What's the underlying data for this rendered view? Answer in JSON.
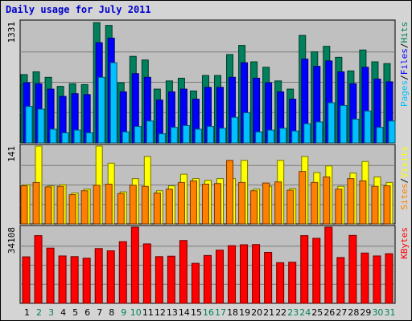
{
  "title": "Daily usage for July 2011",
  "colors": {
    "frame_bg": "#d4d4d4",
    "plot_bg": "#c0c0c0",
    "hits": "#00805c",
    "files": "#0000ff",
    "pages": "#00c0ff",
    "visits": "#ffff00",
    "sites": "#ff8000",
    "kbytes": "#ff0000",
    "weekday_label": "#000000",
    "weekend_label": "#00805c"
  },
  "chart_data": [
    {
      "type": "bar",
      "panel": "hits-files-pages",
      "ymax_label": "1331",
      "ylim": [
        0,
        1331
      ],
      "legend_labels": [
        "Pages",
        "/",
        "Files",
        "/",
        "Hits"
      ],
      "categories": [
        "1",
        "2",
        "3",
        "4",
        "5",
        "6",
        "7",
        "8",
        "9",
        "10",
        "11",
        "12",
        "13",
        "14",
        "15",
        "16",
        "17",
        "18",
        "19",
        "20",
        "21",
        "22",
        "23",
        "24",
        "25",
        "26",
        "27",
        "28",
        "29",
        "30",
        "31"
      ],
      "series": [
        {
          "name": "Hits",
          "values": [
            750,
            780,
            720,
            620,
            650,
            640,
            1320,
            1290,
            660,
            950,
            910,
            590,
            680,
            710,
            570,
            740,
            740,
            970,
            1070,
            890,
            830,
            680,
            590,
            1180,
            1000,
            1060,
            940,
            790,
            1020,
            890,
            870
          ]
        },
        {
          "name": "Files",
          "values": [
            660,
            650,
            590,
            510,
            540,
            530,
            1100,
            1150,
            560,
            760,
            720,
            470,
            560,
            590,
            480,
            610,
            610,
            720,
            880,
            710,
            660,
            560,
            480,
            920,
            840,
            900,
            780,
            650,
            830,
            700,
            670
          ]
        },
        {
          "name": "Pages",
          "values": [
            400,
            370,
            150,
            110,
            140,
            110,
            720,
            880,
            120,
            180,
            240,
            100,
            170,
            190,
            150,
            180,
            160,
            280,
            330,
            120,
            140,
            160,
            130,
            210,
            230,
            440,
            410,
            260,
            350,
            170,
            240
          ]
        }
      ]
    },
    {
      "type": "bar",
      "panel": "visits-sites",
      "ymax_label": "141",
      "ylim": [
        0,
        141
      ],
      "legend_labels": [
        "Sites",
        "/",
        "Visits"
      ],
      "categories": [
        "1",
        "2",
        "3",
        "4",
        "5",
        "6",
        "7",
        "8",
        "9",
        "10",
        "11",
        "12",
        "13",
        "14",
        "15",
        "16",
        "17",
        "18",
        "19",
        "20",
        "21",
        "22",
        "23",
        "24",
        "25",
        "26",
        "27",
        "28",
        "29",
        "30",
        "31"
      ],
      "series": [
        {
          "name": "Visits",
          "values": [
            71,
            141,
            69,
            71,
            56,
            63,
            141,
            110,
            58,
            82,
            122,
            60,
            69,
            90,
            82,
            79,
            82,
            82,
            115,
            63,
            68,
            115,
            64,
            122,
            93,
            105,
            68,
            92,
            113,
            85,
            75
          ]
        },
        {
          "name": "Sites",
          "values": [
            69,
            75,
            67,
            68,
            53,
            60,
            70,
            72,
            55,
            70,
            68,
            56,
            63,
            75,
            78,
            72,
            73,
            115,
            75,
            60,
            74,
            76,
            61,
            95,
            75,
            85,
            63,
            82,
            78,
            68,
            69
          ]
        }
      ]
    },
    {
      "type": "bar",
      "panel": "kbytes",
      "ymax_label": "34108",
      "ylim": [
        0,
        34108
      ],
      "legend_labels": [
        "KBytes"
      ],
      "categories": [
        "1",
        "2",
        "3",
        "4",
        "5",
        "6",
        "7",
        "8",
        "9",
        "10",
        "11",
        "12",
        "13",
        "14",
        "15",
        "16",
        "17",
        "18",
        "19",
        "20",
        "21",
        "22",
        "23",
        "24",
        "25",
        "26",
        "27",
        "28",
        "29",
        "30",
        "31"
      ],
      "series": [
        {
          "name": "KBytes",
          "values": [
            20800,
            30300,
            24700,
            21200,
            20900,
            20200,
            24500,
            23500,
            27600,
            34100,
            26600,
            20900,
            21100,
            28100,
            17900,
            21400,
            23800,
            25800,
            26200,
            26300,
            22800,
            18200,
            18400,
            30300,
            29100,
            34108,
            20500,
            30400,
            22500,
            21200,
            22200
          ]
        }
      ]
    }
  ],
  "weekend_days": [
    "2",
    "3",
    "9",
    "10",
    "16",
    "17",
    "23",
    "24",
    "30",
    "31"
  ]
}
